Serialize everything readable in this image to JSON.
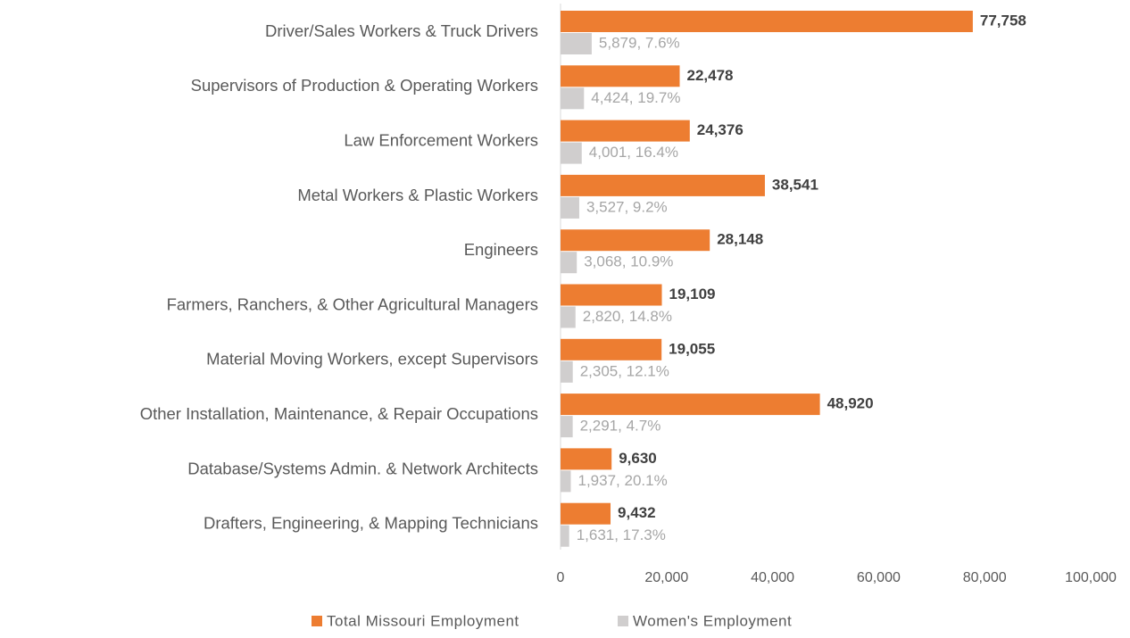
{
  "chart_data": {
    "type": "bar",
    "orientation": "horizontal",
    "categories": [
      "Driver/Sales Workers & Truck Drivers",
      "Supervisors of Production & Operating Workers",
      "Law Enforcement Workers",
      "Metal Workers & Plastic Workers",
      "Engineers",
      "Farmers, Ranchers, & Other Agricultural Managers",
      "Material Moving Workers, except Supervisors",
      "Other Installation, Maintenance, & Repair Occupations",
      "Database/Systems Admin. & Network Architects",
      "Drafters, Engineering, & Mapping Technicians"
    ],
    "series": [
      {
        "name": "Total Missouri Employment",
        "color": "#ed7d31",
        "values": [
          77758,
          22478,
          24376,
          38541,
          28148,
          19109,
          19055,
          48920,
          9630,
          9432
        ],
        "value_labels": [
          "77,758",
          "22,478",
          "24,376",
          "38,541",
          "28,148",
          "19,109",
          "19,055",
          "48,920",
          "9,630",
          "9,432"
        ]
      },
      {
        "name": "Women's Employment",
        "color": "#d0cece",
        "values": [
          5879,
          4424,
          4001,
          3527,
          3068,
          2820,
          2305,
          2291,
          1937,
          1631
        ],
        "value_labels": [
          "5,879, 7.6%",
          "4,424, 19.7%",
          "4,001, 16.4%",
          "3,527, 9.2%",
          "3,068, 10.9%",
          "2,820, 14.8%",
          "2,305, 12.1%",
          "2,291, 4.7%",
          "1,937, 20.1%",
          "1,631, 17.3%"
        ]
      }
    ],
    "xlim": [
      0,
      100000
    ],
    "xticks": [
      0,
      {
        "value": 20000,
        "label": "20,000"
      },
      {
        "value": 40000,
        "label": "40,000"
      },
      {
        "value": 60000,
        "label": "60,000"
      },
      {
        "value": 80000,
        "label": "80,000"
      },
      {
        "value": 100000,
        "label": "100,000"
      }
    ],
    "legend": "bottom",
    "grid": false
  }
}
